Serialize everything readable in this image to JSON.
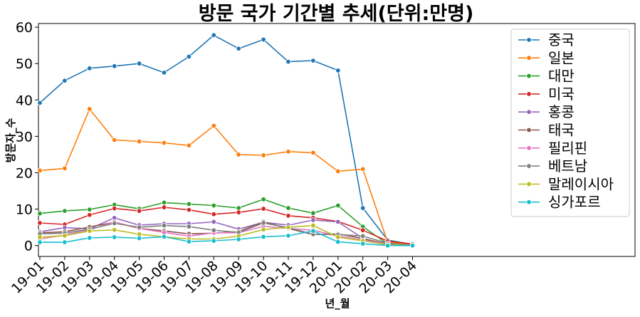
{
  "chart_data": {
    "type": "line",
    "title": "방문 국가 기간별 추세(단위:만명)",
    "xlabel": "년_월",
    "ylabel": "방문자_수",
    "categories": [
      "19-01",
      "19-02",
      "19-03",
      "19-04",
      "19-05",
      "19-06",
      "19-07",
      "19-08",
      "19-09",
      "19-10",
      "19-11",
      "19-12",
      "20-01",
      "20-02",
      "20-03",
      "20-04"
    ],
    "yticks": [
      0,
      10,
      20,
      30,
      40,
      50,
      60
    ],
    "ylim": [
      -3,
      61
    ],
    "legend_position": "upper-right",
    "grid": false,
    "series": [
      {
        "name": "중국",
        "color": "#1f77b4",
        "values": [
          39.2,
          45.3,
          48.7,
          49.3,
          50.0,
          47.5,
          51.9,
          57.8,
          54.1,
          56.6,
          50.5,
          50.8,
          48.1,
          10.3,
          1.5,
          0.3
        ]
      },
      {
        "name": "일본",
        "color": "#ff7f0e",
        "values": [
          20.6,
          21.2,
          37.5,
          29.0,
          28.6,
          28.2,
          27.5,
          32.9,
          25.0,
          24.8,
          25.8,
          25.5,
          20.4,
          21.0,
          0.9,
          0.2
        ]
      },
      {
        "name": "대만",
        "color": "#2ca02c",
        "values": [
          8.8,
          9.5,
          9.9,
          11.2,
          10.1,
          11.8,
          11.4,
          11.0,
          10.3,
          12.7,
          10.3,
          8.9,
          11.0,
          5.2,
          0.4,
          0.1
        ]
      },
      {
        "name": "미국",
        "color": "#d62728",
        "values": [
          6.2,
          5.8,
          8.4,
          10.2,
          9.5,
          10.5,
          9.8,
          8.6,
          9.1,
          10.1,
          8.2,
          7.6,
          6.6,
          4.2,
          1.2,
          0.4
        ]
      },
      {
        "name": "홍콩",
        "color": "#9467bd",
        "values": [
          3.8,
          4.9,
          4.6,
          7.6,
          5.6,
          6.0,
          6.0,
          6.5,
          4.5,
          6.4,
          5.6,
          7.0,
          6.5,
          2.0,
          0.1,
          0.0
        ]
      },
      {
        "name": "태국",
        "color": "#8c564b",
        "values": [
          3.5,
          3.8,
          5.1,
          6.4,
          4.7,
          4.0,
          3.2,
          3.4,
          3.8,
          6.5,
          4.7,
          3.0,
          3.2,
          1.9,
          0.4,
          0.1
        ]
      },
      {
        "name": "필리핀",
        "color": "#e377c2",
        "values": [
          1.8,
          2.9,
          4.3,
          6.5,
          4.7,
          3.6,
          2.6,
          3.5,
          3.5,
          5.3,
          4.7,
          4.2,
          2.6,
          1.5,
          0.4,
          0.1
        ]
      },
      {
        "name": "베트남",
        "color": "#7f7f7f",
        "values": [
          3.2,
          3.4,
          4.5,
          6.1,
          5.0,
          5.5,
          5.2,
          4.2,
          3.6,
          6.2,
          4.9,
          3.1,
          3.0,
          2.6,
          0.6,
          0.1
        ]
      },
      {
        "name": "말레이시아",
        "color": "#bcbd22",
        "values": [
          2.3,
          2.7,
          4.0,
          4.3,
          3.1,
          2.4,
          1.8,
          1.8,
          2.6,
          4.4,
          5.0,
          5.5,
          2.3,
          1.3,
          0.2,
          0.0
        ]
      },
      {
        "name": "싱가포르",
        "color": "#17becf",
        "values": [
          0.9,
          0.9,
          2.1,
          2.3,
          2.0,
          2.4,
          1.1,
          1.3,
          1.7,
          2.4,
          2.7,
          4.0,
          1.0,
          0.5,
          0.0,
          0.0
        ]
      }
    ]
  }
}
